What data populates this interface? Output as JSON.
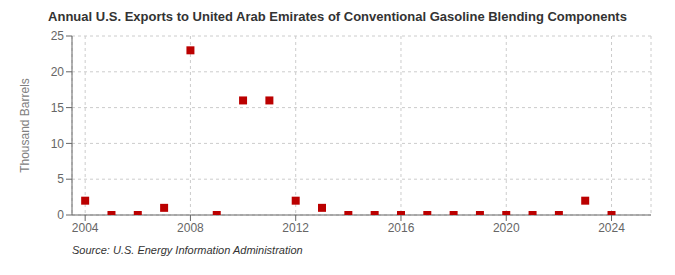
{
  "chart_data": {
    "type": "scatter",
    "title": "Annual U.S. Exports to United Arab Emirates of Conventional Gasoline Blending Components",
    "ylabel": "Thousand Barrels",
    "annotation": "Source: U.S. Energy Information Administration",
    "x": [
      2004,
      2005,
      2006,
      2007,
      2008,
      2009,
      2010,
      2011,
      2012,
      2013,
      2014,
      2015,
      2016,
      2017,
      2018,
      2019,
      2020,
      2021,
      2022,
      2023,
      2024
    ],
    "values": [
      2,
      0,
      0,
      1,
      23,
      0,
      16,
      16,
      2,
      1,
      0,
      0,
      0,
      0,
      0,
      0,
      0,
      0,
      0,
      2,
      0
    ],
    "color": "#bb0000",
    "marker": "square",
    "xlim": [
      2003.5,
      2025.5
    ],
    "xticks": [
      2004,
      2008,
      2012,
      2016,
      2020,
      2024
    ],
    "ylim": [
      0,
      25
    ],
    "yticks": [
      0,
      5,
      10,
      15,
      20,
      25
    ],
    "grid": true
  }
}
